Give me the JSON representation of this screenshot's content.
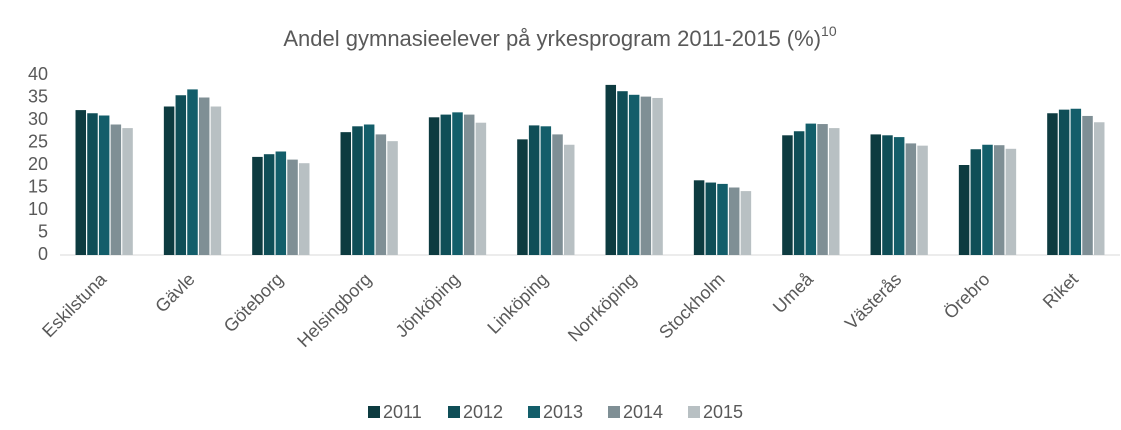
{
  "chart_data": {
    "type": "bar",
    "title": "Andel gymnasieelever på yrkesprogram 2011-2015 (%)",
    "title_superscript": "10",
    "categories": [
      "Eskilstuna",
      "Gävle",
      "Göteborg",
      "Helsingborg",
      "Jönköping",
      "Linköping",
      "Norrköping",
      "Stockholm",
      "Umeå",
      "Västerås",
      "Örebro",
      "Riket"
    ],
    "series": [
      {
        "name": "2011",
        "color": "#0d3b40",
        "values": [
          32.2,
          33,
          21.8,
          27.3,
          30.6,
          25.7,
          37.8,
          16.6,
          26.6,
          26.8,
          20,
          31.5
        ]
      },
      {
        "name": "2012",
        "color": "#0f4e57",
        "values": [
          31.5,
          35.5,
          22.4,
          28.6,
          31.2,
          28.8,
          36.4,
          16.1,
          27.5,
          26.6,
          23.5,
          32.3
        ]
      },
      {
        "name": "2013",
        "color": "#135e6a",
        "values": [
          31,
          36.8,
          23,
          29,
          31.7,
          28.6,
          35.6,
          15.8,
          29.2,
          26.2,
          24.5,
          32.5
        ]
      },
      {
        "name": "2014",
        "color": "#7f8f95",
        "values": [
          29,
          35,
          21.2,
          26.8,
          31.2,
          26.8,
          35.2,
          15,
          29.1,
          24.8,
          24.4,
          30.9
        ]
      },
      {
        "name": "2015",
        "color": "#b8c0c3",
        "values": [
          28.2,
          33,
          20.4,
          25.3,
          29.4,
          24.5,
          34.9,
          14.2,
          28.2,
          24.3,
          23.6,
          29.5
        ]
      }
    ],
    "ylim": [
      0,
      40
    ],
    "yticks": [
      0,
      5,
      10,
      15,
      20,
      25,
      30,
      35,
      40
    ],
    "grid": false,
    "legend": "bottom"
  }
}
